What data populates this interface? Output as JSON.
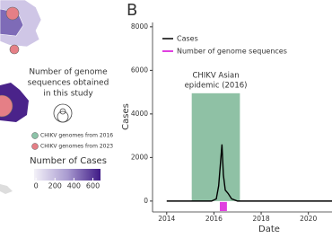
{
  "map_legend": {
    "title_lines": [
      "Number of genome",
      "sequences obtained",
      "in this study"
    ],
    "entries": [
      {
        "label": "CHIKV genomes from 2016",
        "color": "#8cc3a8"
      },
      {
        "label": "CHIKV genomes from 2023",
        "color": "#e57f86"
      }
    ],
    "colorbar_title": "Number of Cases",
    "colorbar_ticks": [
      0,
      200,
      400,
      600
    ],
    "colorbar_range": [
      -20,
      680
    ]
  },
  "chart_data": {
    "type": "line",
    "panel_label": "B",
    "x_label": "Date",
    "y_label": "Cases",
    "xlim": [
      2013.4,
      2021
    ],
    "ylim": [
      -500,
      8200
    ],
    "xticks": [
      2014,
      2016,
      2018,
      2020
    ],
    "yticks": [
      0,
      2000,
      4000,
      6000,
      8000
    ],
    "x": [
      2014,
      2015.9,
      2016.1,
      2016.2,
      2016.34,
      2016.4,
      2016.48,
      2016.6,
      2016.75,
      2017,
      2021
    ],
    "series": [
      {
        "name": "Cases",
        "color": "#000000",
        "values": [
          0,
          0,
          100,
          700,
          2600,
          1200,
          500,
          350,
          100,
          0,
          0
        ]
      }
    ],
    "genome_series": {
      "name": "Number of genome sequences",
      "color": "#e040e0",
      "x_range": [
        2016.25,
        2016.55
      ]
    },
    "highlight": {
      "label_lines": [
        "CHIKV Asian",
        "epidemic (2016)"
      ],
      "x_range": [
        2015.06,
        2017.1
      ],
      "top": 4950,
      "color": "#8fc1a5"
    }
  }
}
